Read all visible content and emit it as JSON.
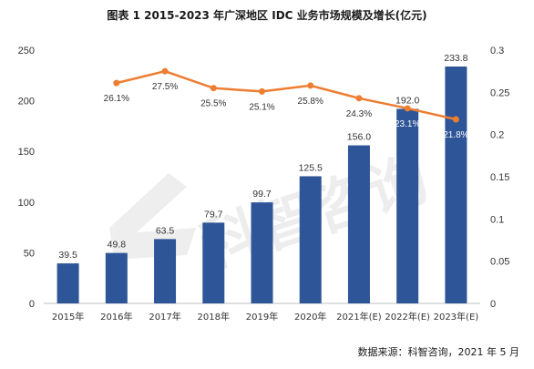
{
  "chart_data": {
    "type": "bar+line",
    "title": "图表 1 2015-2023 年广深地区 IDC 业务市场规模及增长(亿元)",
    "categories": [
      "2015年",
      "2016年",
      "2017年",
      "2018年",
      "2019年",
      "2020年",
      "2021年(E)",
      "2022年(E)",
      "2023年(E)"
    ],
    "bar_series": {
      "values": [
        39.5,
        49.8,
        63.5,
        79.7,
        99.7,
        125.5,
        156.0,
        192.0,
        233.8
      ],
      "value_labels": [
        "39.5",
        "49.8",
        "63.5",
        "79.7",
        "99.7",
        "125.5",
        "156.0",
        "192.0",
        "233.8"
      ],
      "color": "#2e5597"
    },
    "line_series": {
      "values": [
        null,
        0.261,
        0.275,
        0.255,
        0.251,
        0.258,
        0.243,
        0.231,
        0.218
      ],
      "value_labels": [
        "",
        "26.1%",
        "27.5%",
        "25.5%",
        "25.1%",
        "25.8%",
        "24.3%",
        "23.1%",
        "21.8%"
      ],
      "color": "#ed7d31"
    },
    "y_left": {
      "min": 0,
      "max": 250,
      "ticks": [
        "0",
        "50",
        "100",
        "150",
        "200",
        "250"
      ]
    },
    "y_right": {
      "min": 0,
      "max": 0.3,
      "ticks": [
        "0",
        "0.05",
        "0.1",
        "0.15",
        "0.2",
        "0.25",
        "0.3"
      ]
    },
    "grid": false,
    "legend": "none"
  },
  "source": "数据来源：科智咨询，2021 年 5 月",
  "watermark": "科智咨询"
}
